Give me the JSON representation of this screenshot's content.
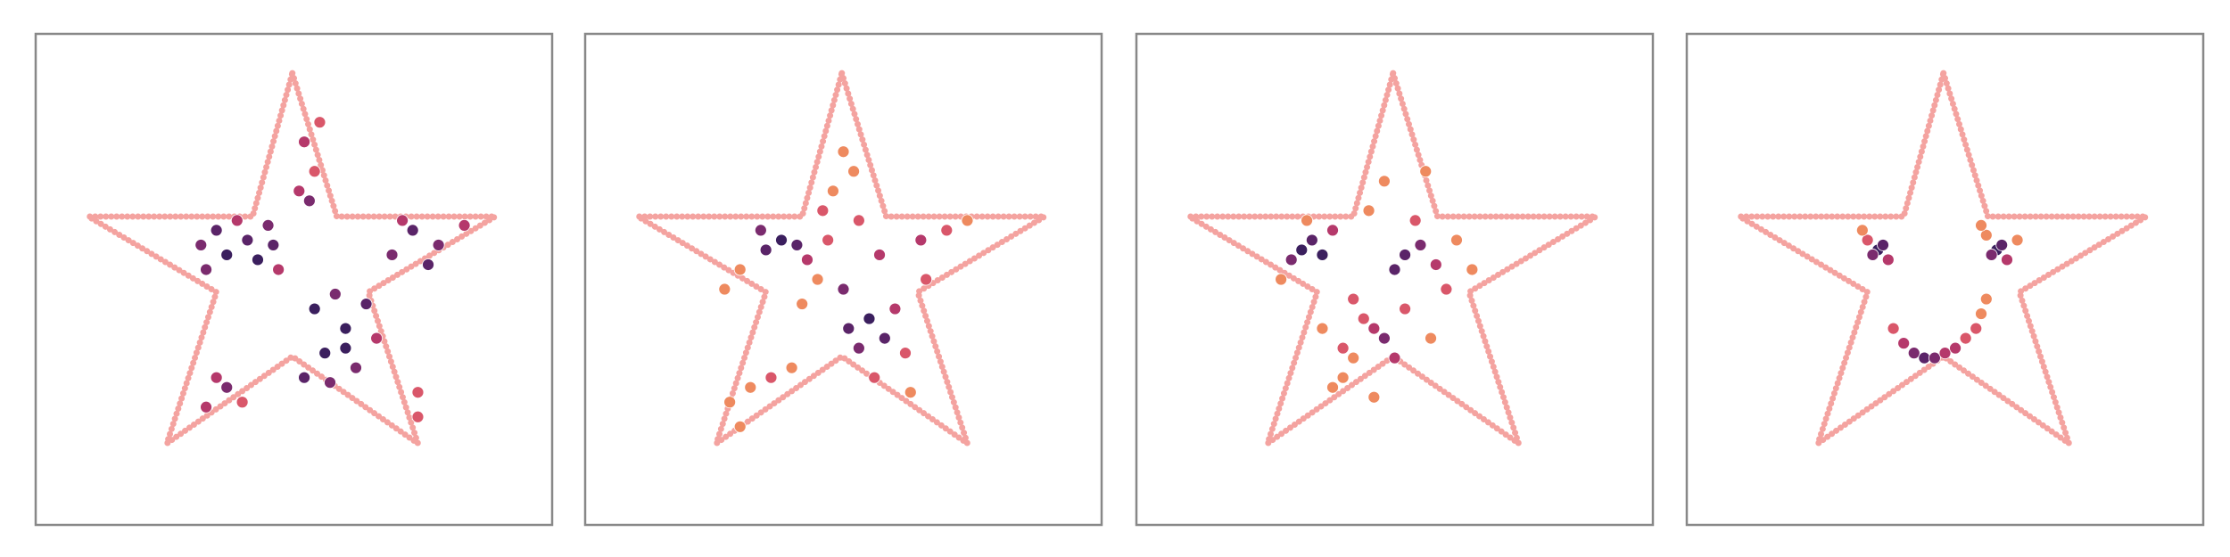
{
  "chart_data": [
    {
      "type": "scatter",
      "xlim": [
        0,
        100
      ],
      "ylim": [
        0,
        100
      ],
      "x": [
        33,
        37,
        41,
        45,
        47,
        35,
        43,
        39,
        46,
        32,
        51,
        54,
        52,
        55,
        53,
        52,
        56,
        60,
        64,
        58,
        54,
        62,
        66,
        57,
        60,
        69,
        73,
        78,
        83,
        76,
        71,
        33,
        37,
        40,
        35,
        74,
        74
      ],
      "values": [
        52,
        55,
        58,
        61,
        52,
        60,
        54,
        62,
        57,
        57,
        68,
        72,
        78,
        82,
        66,
        30,
        35,
        40,
        45,
        47,
        44,
        32,
        38,
        29,
        36,
        55,
        60,
        57,
        61,
        53,
        62,
        24,
        28,
        25,
        30,
        22,
        27
      ],
      "colors": [
        "#7a2b6e",
        "#3b1f5e",
        "#5a2468",
        "#7a2b6e",
        "#b5396b",
        "#5a2468",
        "#3b1f5e",
        "#b5396b",
        "#5a2468",
        "#7a2b6e",
        "#b5396b",
        "#d9576a",
        "#b5396b",
        "#d9576a",
        "#7a2b6e",
        "#5a2468",
        "#3b1f5e",
        "#3b1f5e",
        "#5a2468",
        "#7a2b6e",
        "#3b1f5e",
        "#7a2b6e",
        "#b5396b",
        "#7a2b6e",
        "#3b1f5e",
        "#7a2b6e",
        "#5a2468",
        "#7a2b6e",
        "#b5396b",
        "#5a2468",
        "#b5396b",
        "#b5396b",
        "#7a2b6e",
        "#d9576a",
        "#b5396b",
        "#d9576a",
        "#d9576a"
      ]
    },
    {
      "type": "scatter",
      "xlim": [
        0,
        100
      ],
      "ylim": [
        0,
        100
      ],
      "x": [
        35,
        38,
        41,
        34,
        43,
        30,
        46,
        50,
        55,
        58,
        53,
        60,
        56,
        51,
        62,
        48,
        52,
        50,
        53,
        47,
        45,
        28,
        32,
        36,
        40,
        30,
        65,
        70,
        74,
        63,
        57,
        42,
        66,
        27
      ],
      "values": [
        56,
        58,
        57,
        60,
        54,
        52,
        64,
        48,
        42,
        38,
        36,
        44,
        30,
        40,
        35,
        68,
        72,
        76,
        62,
        58,
        50,
        25,
        28,
        30,
        32,
        20,
        58,
        60,
        62,
        27,
        55,
        45,
        50,
        48
      ],
      "colors": [
        "#5a2468",
        "#3b1f5e",
        "#5a2468",
        "#7a2b6e",
        "#b5396b",
        "#ee8a5f",
        "#d9576a",
        "#7a2b6e",
        "#3b1f5e",
        "#5a2468",
        "#7a2b6e",
        "#b5396b",
        "#d9576a",
        "#5a2468",
        "#d9576a",
        "#ee8a5f",
        "#ee8a5f",
        "#ee8a5f",
        "#d9576a",
        "#d9576a",
        "#ee8a5f",
        "#ee8a5f",
        "#ee8a5f",
        "#d9576a",
        "#ee8a5f",
        "#ee8a5f",
        "#b5396b",
        "#d9576a",
        "#ee8a5f",
        "#ee8a5f",
        "#b5396b",
        "#ee8a5f",
        "#d9576a",
        "#ee8a5f"
      ]
    },
    {
      "type": "scatter",
      "xlim": [
        0,
        100
      ],
      "ylim": [
        0,
        100
      ],
      "x": [
        32,
        34,
        36,
        30,
        38,
        52,
        55,
        50,
        58,
        54,
        48,
        46,
        50,
        44,
        42,
        40,
        38,
        42,
        36,
        60,
        62,
        45,
        48,
        56,
        28,
        33,
        65,
        52,
        46,
        40,
        57
      ],
      "values": [
        56,
        58,
        55,
        54,
        60,
        55,
        57,
        52,
        53,
        62,
        38,
        40,
        34,
        42,
        34,
        30,
        28,
        46,
        40,
        48,
        58,
        64,
        70,
        72,
        50,
        62,
        52,
        44,
        26,
        36,
        38
      ],
      "colors": [
        "#3b1f5e",
        "#5a2468",
        "#3b1f5e",
        "#7a2b6e",
        "#b5396b",
        "#5a2468",
        "#7a2b6e",
        "#5a2468",
        "#b5396b",
        "#d9576a",
        "#7a2b6e",
        "#b5396b",
        "#b5396b",
        "#d9576a",
        "#ee8a5f",
        "#ee8a5f",
        "#ee8a5f",
        "#d9576a",
        "#ee8a5f",
        "#d9576a",
        "#ee8a5f",
        "#ee8a5f",
        "#ee8a5f",
        "#ee8a5f",
        "#ee8a5f",
        "#ee8a5f",
        "#ee8a5f",
        "#d9576a",
        "#ee8a5f",
        "#d9576a",
        "#ee8a5f"
      ]
    },
    {
      "type": "scatter",
      "xlim": [
        0,
        100
      ],
      "ylim": [
        0,
        100
      ],
      "x": [
        37,
        38,
        36,
        39,
        35,
        34,
        60,
        61,
        59,
        62,
        58,
        57,
        64,
        40,
        42,
        44,
        46,
        48,
        50,
        52,
        54,
        56,
        57,
        58
      ],
      "values": [
        56,
        57,
        55,
        54,
        58,
        60,
        56,
        57,
        55,
        54,
        59,
        61,
        58,
        40,
        37,
        35,
        34,
        34,
        35,
        36,
        38,
        40,
        43,
        46
      ],
      "colors": [
        "#3b1f5e",
        "#5a2468",
        "#7a2b6e",
        "#b5396b",
        "#d9576a",
        "#ee8a5f",
        "#3b1f5e",
        "#5a2468",
        "#7a2b6e",
        "#b5396b",
        "#ee8a5f",
        "#ee8a5f",
        "#ee8a5f",
        "#d9576a",
        "#b5396b",
        "#7a2b6e",
        "#5a2468",
        "#7a2b6e",
        "#b5396b",
        "#b5396b",
        "#d9576a",
        "#d9576a",
        "#ee8a5f",
        "#ee8a5f"
      ]
    }
  ]
}
